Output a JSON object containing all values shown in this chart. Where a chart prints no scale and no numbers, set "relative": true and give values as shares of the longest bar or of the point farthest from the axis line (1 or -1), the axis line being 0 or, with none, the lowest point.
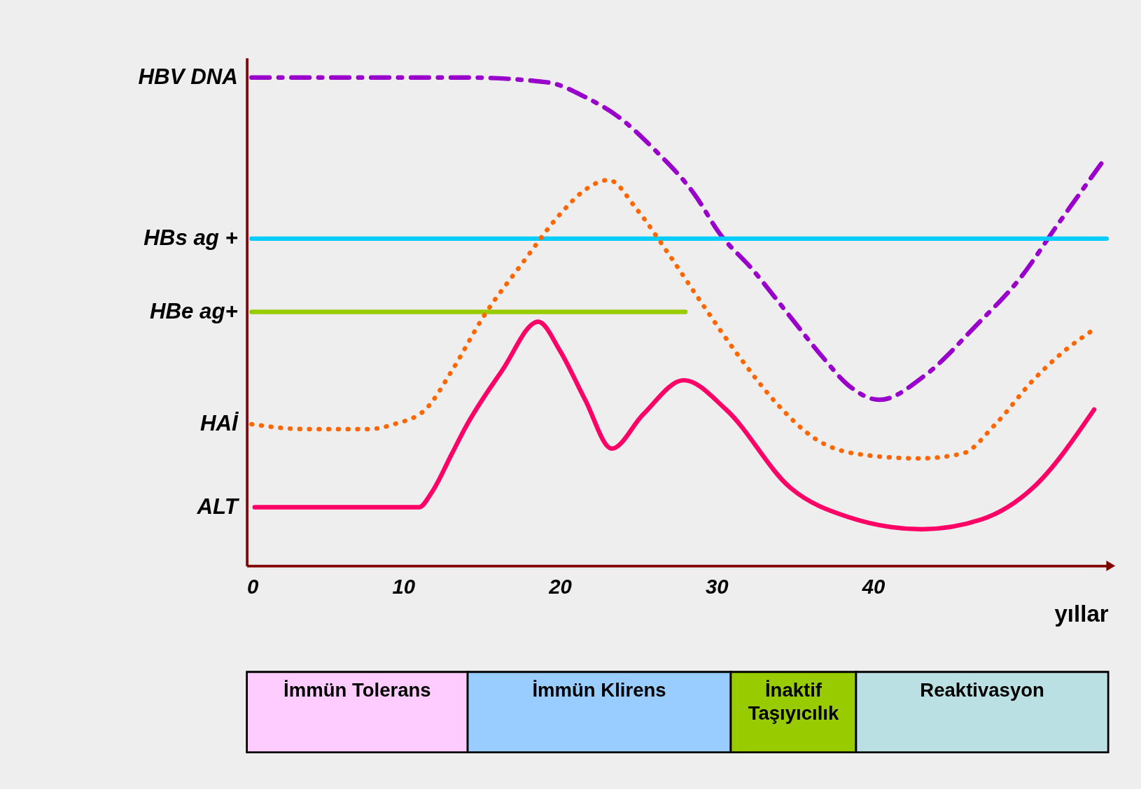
{
  "chart_data": [
    {
      "type": "line",
      "relative": true,
      "xlabel": "yıllar",
      "xlim": [
        0,
        55
      ],
      "xticks": [
        0,
        10,
        20,
        30,
        40
      ],
      "legend": false,
      "grid": false,
      "series": [
        {
          "name": "HBV DNA",
          "color": "#9900cc",
          "line_style": "dashed",
          "x": [
            0.3,
            6.9,
            13.9,
            19.2,
            21.6,
            23.7,
            26.1,
            28.6,
            30.2,
            32.2,
            34.7,
            36.7,
            38.4,
            40.4,
            43.3,
            46.5,
            49.4,
            51.8,
            54.7
          ],
          "values": [
            1.0,
            1.0,
            1.0,
            0.99,
            0.96,
            0.92,
            0.85,
            0.76,
            0.68,
            0.61,
            0.51,
            0.43,
            0.37,
            0.34,
            0.39,
            0.49,
            0.59,
            0.7,
            0.83
          ]
        },
        {
          "name": "HBs ag +",
          "color": "#00ccff",
          "line_style": "solid",
          "x": [
            0.3,
            54.9
          ],
          "values": [
            0.67,
            0.67
          ]
        },
        {
          "name": "HBe ag+",
          "color": "#99cc00",
          "line_style": "solid",
          "x": [
            0.3,
            28.0
          ],
          "values": [
            0.52,
            0.52
          ]
        },
        {
          "name": "HAİ",
          "color": "#ff6600",
          "line_style": "dotted",
          "x": [
            0.3,
            3.7,
            7.8,
            9.4,
            11.4,
            13.1,
            15.1,
            17.6,
            20.0,
            21.6,
            23.1,
            24.9,
            26.9,
            29.0,
            31.4,
            33.9,
            36.3,
            38.8,
            42.9,
            45.7,
            47.8,
            50.2,
            52.2,
            53.9
          ],
          "values": [
            0.29,
            0.28,
            0.28,
            0.29,
            0.32,
            0.4,
            0.51,
            0.62,
            0.72,
            0.77,
            0.79,
            0.73,
            0.64,
            0.54,
            0.43,
            0.33,
            0.26,
            0.23,
            0.22,
            0.23,
            0.29,
            0.38,
            0.44,
            0.48
          ]
        },
        {
          "name": "ALT",
          "color": "#ff0066",
          "line_style": "solid",
          "x": [
            0.5,
            8.6,
            11.0,
            11.8,
            13.1,
            13.9,
            16.3,
            18.6,
            20.0,
            21.6,
            23.3,
            25.3,
            27.9,
            30.6,
            34.7,
            38.4,
            43.1,
            46.9,
            50.2,
            54.1
          ],
          "values": [
            0.12,
            0.12,
            0.12,
            0.15,
            0.23,
            0.28,
            0.4,
            0.5,
            0.44,
            0.34,
            0.24,
            0.31,
            0.38,
            0.32,
            0.16,
            0.1,
            0.075,
            0.095,
            0.16,
            0.32
          ]
        }
      ]
    },
    {
      "type": "bar",
      "orientation": "horizontal",
      "stacked": true,
      "categories": [
        null
      ],
      "xlim": [
        0,
        55
      ],
      "tick_labels": false,
      "legend": false,
      "series": [
        {
          "name": "İmmün Tolerans",
          "color": "#ffccff",
          "values": [
            14.1
          ]
        },
        {
          "name": "İmmün Klirens",
          "color": "#99ccff",
          "values": [
            16.8
          ]
        },
        {
          "name": "İnaktif Taşıyıcılık",
          "color": "#99cc00",
          "values": [
            8.0
          ]
        },
        {
          "name": "Reaktivasyon",
          "color": "#bbe0e3",
          "values": [
            16.1
          ]
        }
      ]
    }
  ]
}
